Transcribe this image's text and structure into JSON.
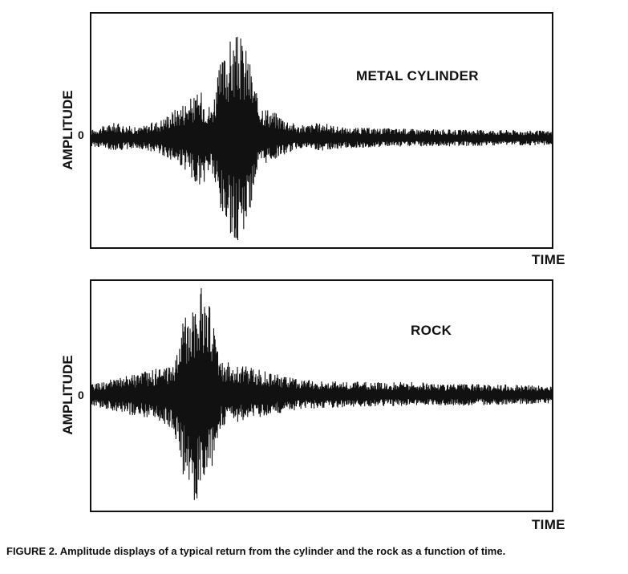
{
  "figure": {
    "caption": "FIGURE 2. Amplitude displays of a typical return from the cylinder and the rock as a function of time."
  },
  "panels": [
    {
      "title": "METAL CYLINDER",
      "ylabel": "AMPLITUDE",
      "zero_label": "0",
      "xlabel": "TIME"
    },
    {
      "title": "ROCK",
      "ylabel": "AMPLITUDE",
      "zero_label": "0",
      "xlabel": "TIME"
    }
  ],
  "chart_data": [
    {
      "type": "area",
      "title": "METAL CYLINDER",
      "xlabel": "TIME",
      "ylabel": "AMPLITUDE",
      "y_ticks": [
        "0"
      ],
      "grid": false,
      "envelope": {
        "x": [
          0,
          0.05,
          0.1,
          0.15,
          0.2,
          0.24,
          0.26,
          0.28,
          0.3,
          0.32,
          0.34,
          0.36,
          0.38,
          0.4,
          0.45,
          0.5,
          0.55,
          0.6,
          0.7,
          0.8,
          0.9,
          1.0
        ],
        "upper": [
          0.08,
          0.15,
          0.1,
          0.18,
          0.35,
          0.45,
          0.3,
          0.72,
          0.95,
          1.0,
          0.85,
          0.4,
          0.3,
          0.25,
          0.12,
          0.15,
          0.1,
          0.1,
          0.09,
          0.08,
          0.08,
          0.07
        ],
        "lower": [
          -0.08,
          -0.12,
          -0.1,
          -0.15,
          -0.3,
          -0.5,
          -0.3,
          -0.8,
          -0.95,
          -1.0,
          -0.8,
          -0.35,
          -0.25,
          -0.2,
          -0.1,
          -0.12,
          -0.1,
          -0.09,
          -0.08,
          -0.08,
          -0.07,
          -0.07
        ]
      }
    },
    {
      "type": "area",
      "title": "ROCK",
      "xlabel": "TIME",
      "ylabel": "AMPLITUDE",
      "y_ticks": [
        "0"
      ],
      "grid": false,
      "envelope": {
        "x": [
          0,
          0.05,
          0.1,
          0.15,
          0.18,
          0.2,
          0.22,
          0.24,
          0.26,
          0.28,
          0.3,
          0.35,
          0.4,
          0.45,
          0.5,
          0.6,
          0.7,
          0.8,
          0.9,
          1.0
        ],
        "upper": [
          0.1,
          0.15,
          0.2,
          0.25,
          0.3,
          0.7,
          0.95,
          1.0,
          0.8,
          0.35,
          0.3,
          0.25,
          0.2,
          0.15,
          0.13,
          0.12,
          0.12,
          0.1,
          0.1,
          0.08
        ],
        "lower": [
          -0.1,
          -0.15,
          -0.2,
          -0.25,
          -0.35,
          -0.75,
          -1.0,
          -0.95,
          -0.7,
          -0.3,
          -0.28,
          -0.22,
          -0.18,
          -0.14,
          -0.12,
          -0.11,
          -0.1,
          -0.1,
          -0.09,
          -0.08
        ]
      }
    }
  ]
}
